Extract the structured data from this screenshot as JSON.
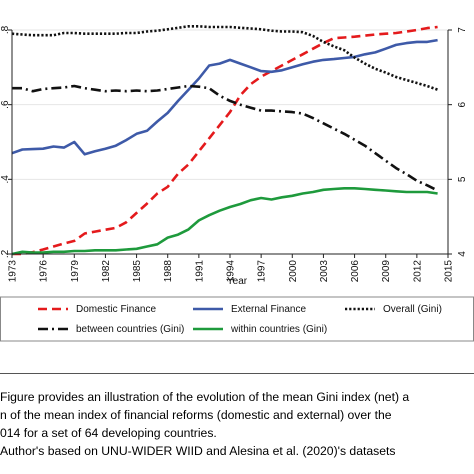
{
  "chart_data": {
    "type": "line",
    "xlabel": "Year",
    "x": [
      1973,
      1974,
      1975,
      1976,
      1977,
      1978,
      1979,
      1980,
      1981,
      1982,
      1983,
      1984,
      1985,
      1986,
      1987,
      1988,
      1989,
      1990,
      1991,
      1992,
      1993,
      1994,
      1995,
      1996,
      1997,
      1998,
      1999,
      2000,
      2001,
      2002,
      2003,
      2004,
      2005,
      2006,
      2007,
      2008,
      2009,
      2010,
      2011,
      2012,
      2013,
      2014
    ],
    "x_ticks": [
      "1973",
      "1976",
      "1979",
      "1982",
      "1985",
      "1988",
      "1991",
      "1994",
      "1997",
      "2000",
      "2003",
      "2006",
      "2009",
      "2012",
      "2015"
    ],
    "x_tick_values": [
      1973,
      1976,
      1979,
      1982,
      1985,
      1988,
      1991,
      1994,
      1997,
      2000,
      2003,
      2006,
      2009,
      2012,
      2015
    ],
    "xlim": [
      1973,
      2015
    ],
    "left_axis": {
      "ticks": [
        ".2",
        ".4",
        ".6",
        ".8"
      ],
      "tick_values": [
        0.2,
        0.4,
        0.6,
        0.8
      ],
      "ylim": [
        0.2,
        0.8
      ]
    },
    "right_axis": {
      "ticks": [
        "4",
        "5",
        "6",
        "7"
      ],
      "tick_values": [
        4,
        5,
        6,
        7
      ],
      "ylim": [
        4,
        7
      ]
    },
    "legend_position": "bottom",
    "series": [
      {
        "name": "Domestic Finance",
        "axis": "left",
        "color": "#e41a1c",
        "style": "dashed",
        "values": [
          0.2,
          0.2,
          0.205,
          0.212,
          0.22,
          0.228,
          0.235,
          0.255,
          0.26,
          0.265,
          0.27,
          0.285,
          0.31,
          0.335,
          0.362,
          0.38,
          0.415,
          0.44,
          0.475,
          0.51,
          0.545,
          0.58,
          0.625,
          0.655,
          0.675,
          0.69,
          0.705,
          0.72,
          0.735,
          0.75,
          0.765,
          0.778,
          0.78,
          0.782,
          0.785,
          0.788,
          0.79,
          0.792,
          0.796,
          0.8,
          0.805,
          0.808
        ]
      },
      {
        "name": "External Finance",
        "axis": "left",
        "color": "#3e5aa8",
        "style": "solid",
        "values": [
          0.47,
          0.48,
          0.481,
          0.482,
          0.488,
          0.485,
          0.5,
          0.467,
          0.475,
          0.482,
          0.49,
          0.505,
          0.522,
          0.53,
          0.555,
          0.578,
          0.61,
          0.64,
          0.67,
          0.705,
          0.71,
          0.72,
          0.71,
          0.7,
          0.69,
          0.688,
          0.692,
          0.7,
          0.708,
          0.715,
          0.72,
          0.722,
          0.725,
          0.728,
          0.735,
          0.74,
          0.75,
          0.76,
          0.765,
          0.768,
          0.768,
          0.773
        ]
      },
      {
        "name": "Overall (Gini)",
        "axis": "right",
        "color": "#111111",
        "style": "dotted",
        "values": [
          6.95,
          6.94,
          6.93,
          6.93,
          6.93,
          6.96,
          6.96,
          6.95,
          6.95,
          6.95,
          6.95,
          6.96,
          6.96,
          6.98,
          6.99,
          7.01,
          7.03,
          7.05,
          7.05,
          7.04,
          7.04,
          7.04,
          7.03,
          7.02,
          7.01,
          6.99,
          6.98,
          6.98,
          6.97,
          6.92,
          6.84,
          6.78,
          6.73,
          6.63,
          6.55,
          6.48,
          6.43,
          6.37,
          6.33,
          6.29,
          6.25,
          6.2
        ]
      },
      {
        "name": "between countries (Gini)",
        "axis": "right",
        "color": "#111111",
        "style": "dashdot",
        "values": [
          6.22,
          6.22,
          6.18,
          6.21,
          6.22,
          6.23,
          6.25,
          6.22,
          6.2,
          6.18,
          6.19,
          6.18,
          6.19,
          6.18,
          6.19,
          6.21,
          6.23,
          6.25,
          6.24,
          6.22,
          6.12,
          6.05,
          6.0,
          5.96,
          5.92,
          5.92,
          5.91,
          5.9,
          5.88,
          5.82,
          5.75,
          5.68,
          5.61,
          5.53,
          5.45,
          5.35,
          5.25,
          5.15,
          5.07,
          4.98,
          4.92,
          4.85
        ]
      },
      {
        "name": "within countries (Gini)",
        "axis": "right",
        "color": "#1e9a3c",
        "style": "solid",
        "values": [
          4.0,
          4.03,
          4.02,
          4.02,
          4.03,
          4.03,
          4.04,
          4.04,
          4.05,
          4.05,
          4.05,
          4.06,
          4.07,
          4.1,
          4.13,
          4.22,
          4.26,
          4.33,
          4.45,
          4.52,
          4.58,
          4.63,
          4.67,
          4.72,
          4.75,
          4.73,
          4.76,
          4.78,
          4.81,
          4.83,
          4.86,
          4.87,
          4.88,
          4.88,
          4.87,
          4.86,
          4.85,
          4.84,
          4.83,
          4.83,
          4.83,
          4.81
        ]
      }
    ]
  },
  "caption": {
    "line1": "Figure provides an illustration of the evolution of the mean Gini index (net) a",
    "line2": "n of the mean index of financial reforms (domestic and external) over the",
    "line3": "014 for a set of 64 developing countries.",
    "line4": "Author's based on UNU-WIDER WIID and Alesina et al. (2020)'s datasets"
  }
}
